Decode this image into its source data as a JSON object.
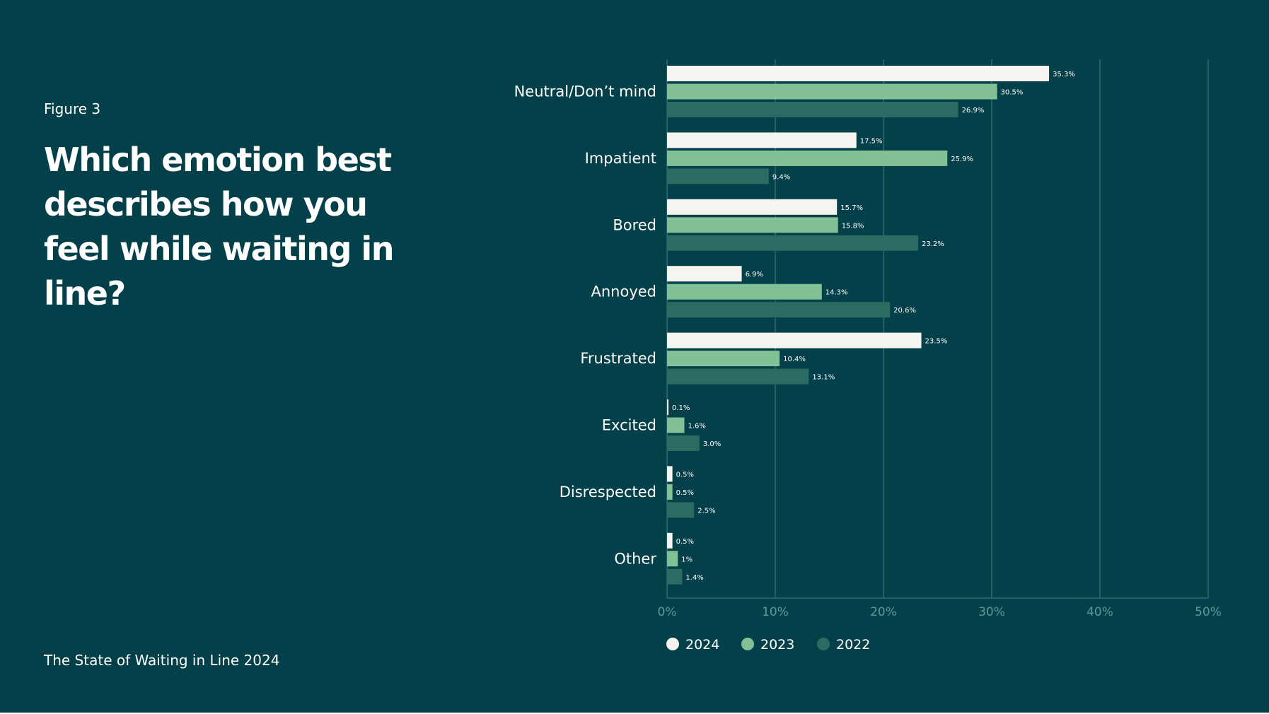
{
  "figure_label": "Figure 3",
  "title": "Which emotion best describes how you feel while waiting in line?",
  "footer": "The State of Waiting in Line 2024",
  "colors": {
    "background": "#034049",
    "series_2024": "#f6f4f1",
    "series_2023": "#82c095",
    "series_2022": "#2a6b62",
    "gridline": "#2c6b6b",
    "tick_text": "#5e9a93"
  },
  "chart_data": {
    "type": "bar",
    "orientation": "horizontal",
    "categories": [
      "Neutral/Don’t mind",
      "Impatient",
      "Bored",
      "Annoyed",
      "Frustrated",
      "Excited",
      "Disrespected",
      "Other"
    ],
    "series": [
      {
        "name": "2024",
        "values": [
          35.3,
          17.5,
          15.7,
          6.9,
          23.5,
          0.1,
          0.5,
          0.5
        ],
        "labels": [
          "35.3%",
          "17.5%",
          "15.7%",
          "6.9%",
          "23.5%",
          "0.1%",
          "0.5%",
          "0.5%"
        ]
      },
      {
        "name": "2023",
        "values": [
          30.5,
          25.9,
          15.8,
          14.3,
          10.4,
          1.6,
          0.5,
          1
        ],
        "labels": [
          "30.5%",
          "25.9%",
          "15.8%",
          "14.3%",
          "10.4%",
          "1.6%",
          "0.5%",
          "1%"
        ]
      },
      {
        "name": "2022",
        "values": [
          26.9,
          9.4,
          23.2,
          20.6,
          13.1,
          3.0,
          2.5,
          1.4
        ],
        "labels": [
          "26.9%",
          "9.4%",
          "23.2%",
          "20.6%",
          "13.1%",
          "3.0%",
          "2.5%",
          "1.4%"
        ]
      }
    ],
    "xlim": [
      0,
      50
    ],
    "xticks": [
      0,
      10,
      20,
      30,
      40,
      50
    ],
    "xtick_labels": [
      "0%",
      "10%",
      "20%",
      "30%",
      "40%",
      "50%"
    ],
    "grid": true,
    "legend": {
      "position": "bottom-left",
      "entries": [
        "2024",
        "2023",
        "2022"
      ]
    }
  }
}
